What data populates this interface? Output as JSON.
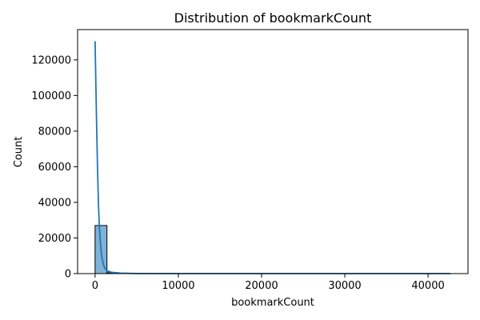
{
  "chart_data": {
    "type": "bar",
    "subtype": "histogram-with-kde",
    "title": "Distribution of bookmarkCount",
    "xlabel": "bookmarkCount",
    "ylabel": "Count",
    "xlim": [
      -2100,
      44800
    ],
    "ylim": [
      0,
      137000
    ],
    "x_ticks": [
      0,
      10000,
      20000,
      30000,
      40000
    ],
    "y_ticks": [
      0,
      20000,
      40000,
      60000,
      80000,
      100000,
      120000
    ],
    "grid": false,
    "legend": "none",
    "bins": [
      {
        "x0": 0,
        "x1": 1425,
        "count": 27000
      },
      {
        "x0": 1425,
        "x1": 2850,
        "count": 500
      },
      {
        "x0": 2850,
        "x1": 4275,
        "count": 150
      },
      {
        "x0": 4275,
        "x1": 5700,
        "count": 80
      },
      {
        "x0": 5700,
        "x1": 7125,
        "count": 40
      },
      {
        "x0": 7125,
        "x1": 8550,
        "count": 25
      },
      {
        "x0": 8550,
        "x1": 9975,
        "count": 15
      },
      {
        "x0": 9975,
        "x1": 11400,
        "count": 10
      },
      {
        "x0": 11400,
        "x1": 12825,
        "count": 8
      },
      {
        "x0": 12825,
        "x1": 14250,
        "count": 5
      },
      {
        "x0": 14250,
        "x1": 15675,
        "count": 4
      },
      {
        "x0": 15675,
        "x1": 17100,
        "count": 3
      },
      {
        "x0": 17100,
        "x1": 18525,
        "count": 2
      },
      {
        "x0": 18525,
        "x1": 19950,
        "count": 2
      },
      {
        "x0": 19950,
        "x1": 21375,
        "count": 1
      },
      {
        "x0": 21375,
        "x1": 22800,
        "count": 1
      },
      {
        "x0": 22800,
        "x1": 24225,
        "count": 1
      },
      {
        "x0": 24225,
        "x1": 25650,
        "count": 1
      },
      {
        "x0": 25650,
        "x1": 27075,
        "count": 1
      },
      {
        "x0": 27075,
        "x1": 28500,
        "count": 1
      },
      {
        "x0": 28500,
        "x1": 29925,
        "count": 0
      },
      {
        "x0": 29925,
        "x1": 31350,
        "count": 0
      },
      {
        "x0": 31350,
        "x1": 32775,
        "count": 1
      },
      {
        "x0": 32775,
        "x1": 34200,
        "count": 0
      },
      {
        "x0": 34200,
        "x1": 35625,
        "count": 0
      },
      {
        "x0": 35625,
        "x1": 37050,
        "count": 0
      },
      {
        "x0": 37050,
        "x1": 38475,
        "count": 1
      },
      {
        "x0": 38475,
        "x1": 39900,
        "count": 0
      },
      {
        "x0": 39900,
        "x1": 41325,
        "count": 0
      },
      {
        "x0": 41325,
        "x1": 42750,
        "count": 1
      }
    ],
    "kde_line": {
      "x": [
        0,
        100,
        200,
        300,
        400,
        500,
        600,
        700,
        800,
        1000,
        1200,
        1500,
        2000,
        3000,
        5000,
        10000,
        20000,
        30000,
        42700
      ],
      "y": [
        130500,
        105000,
        80000,
        58000,
        40000,
        28000,
        20000,
        14000,
        9500,
        5000,
        2800,
        1500,
        700,
        250,
        60,
        10,
        5,
        3,
        2
      ]
    },
    "colors": {
      "bar_fill": "#7fb2d9",
      "bar_edge": "#000000",
      "kde_line": "#1f77b4",
      "axes": "#000000"
    }
  }
}
